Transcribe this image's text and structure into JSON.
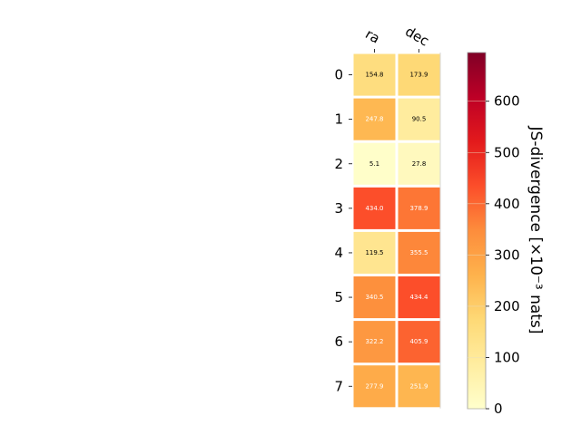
{
  "chart_data": {
    "type": "heatmap",
    "x_categories": [
      "ra",
      "dec"
    ],
    "y_categories": [
      "0",
      "1",
      "2",
      "3",
      "4",
      "5",
      "6",
      "7"
    ],
    "values": [
      [
        154.8,
        173.9
      ],
      [
        247.8,
        90.5
      ],
      [
        5.1,
        27.8
      ],
      [
        434.0,
        378.9
      ],
      [
        119.5,
        355.5
      ],
      [
        340.5,
        434.4
      ],
      [
        322.2,
        405.9
      ],
      [
        277.9,
        251.9
      ]
    ],
    "value_labels": [
      [
        "154.8",
        "173.9"
      ],
      [
        "247.8",
        "90.5"
      ],
      [
        "5.1",
        "27.8"
      ],
      [
        "434.0",
        "378.9"
      ],
      [
        "119.5",
        "355.5"
      ],
      [
        "340.5",
        "434.4"
      ],
      [
        "322.2",
        "405.9"
      ],
      [
        "277.9",
        "251.9"
      ]
    ],
    "colorbar": {
      "label": "JS-divergence [×10⁻³ nats]",
      "range": [
        0,
        695
      ],
      "ticks": [
        0,
        100,
        200,
        300,
        400,
        500,
        600
      ],
      "tick_labels": [
        "0",
        "100",
        "200",
        "300",
        "400",
        "500",
        "600"
      ],
      "colormap": "YlOrRd",
      "colormap_stops": [
        "#ffffcc",
        "#ffeda0",
        "#fed976",
        "#feb24c",
        "#fd8d3c",
        "#fc4e2a",
        "#e31a1c",
        "#bd0026",
        "#800026"
      ]
    },
    "text_color_threshold": 235,
    "title": "",
    "xlabel": "",
    "ylabel": ""
  }
}
